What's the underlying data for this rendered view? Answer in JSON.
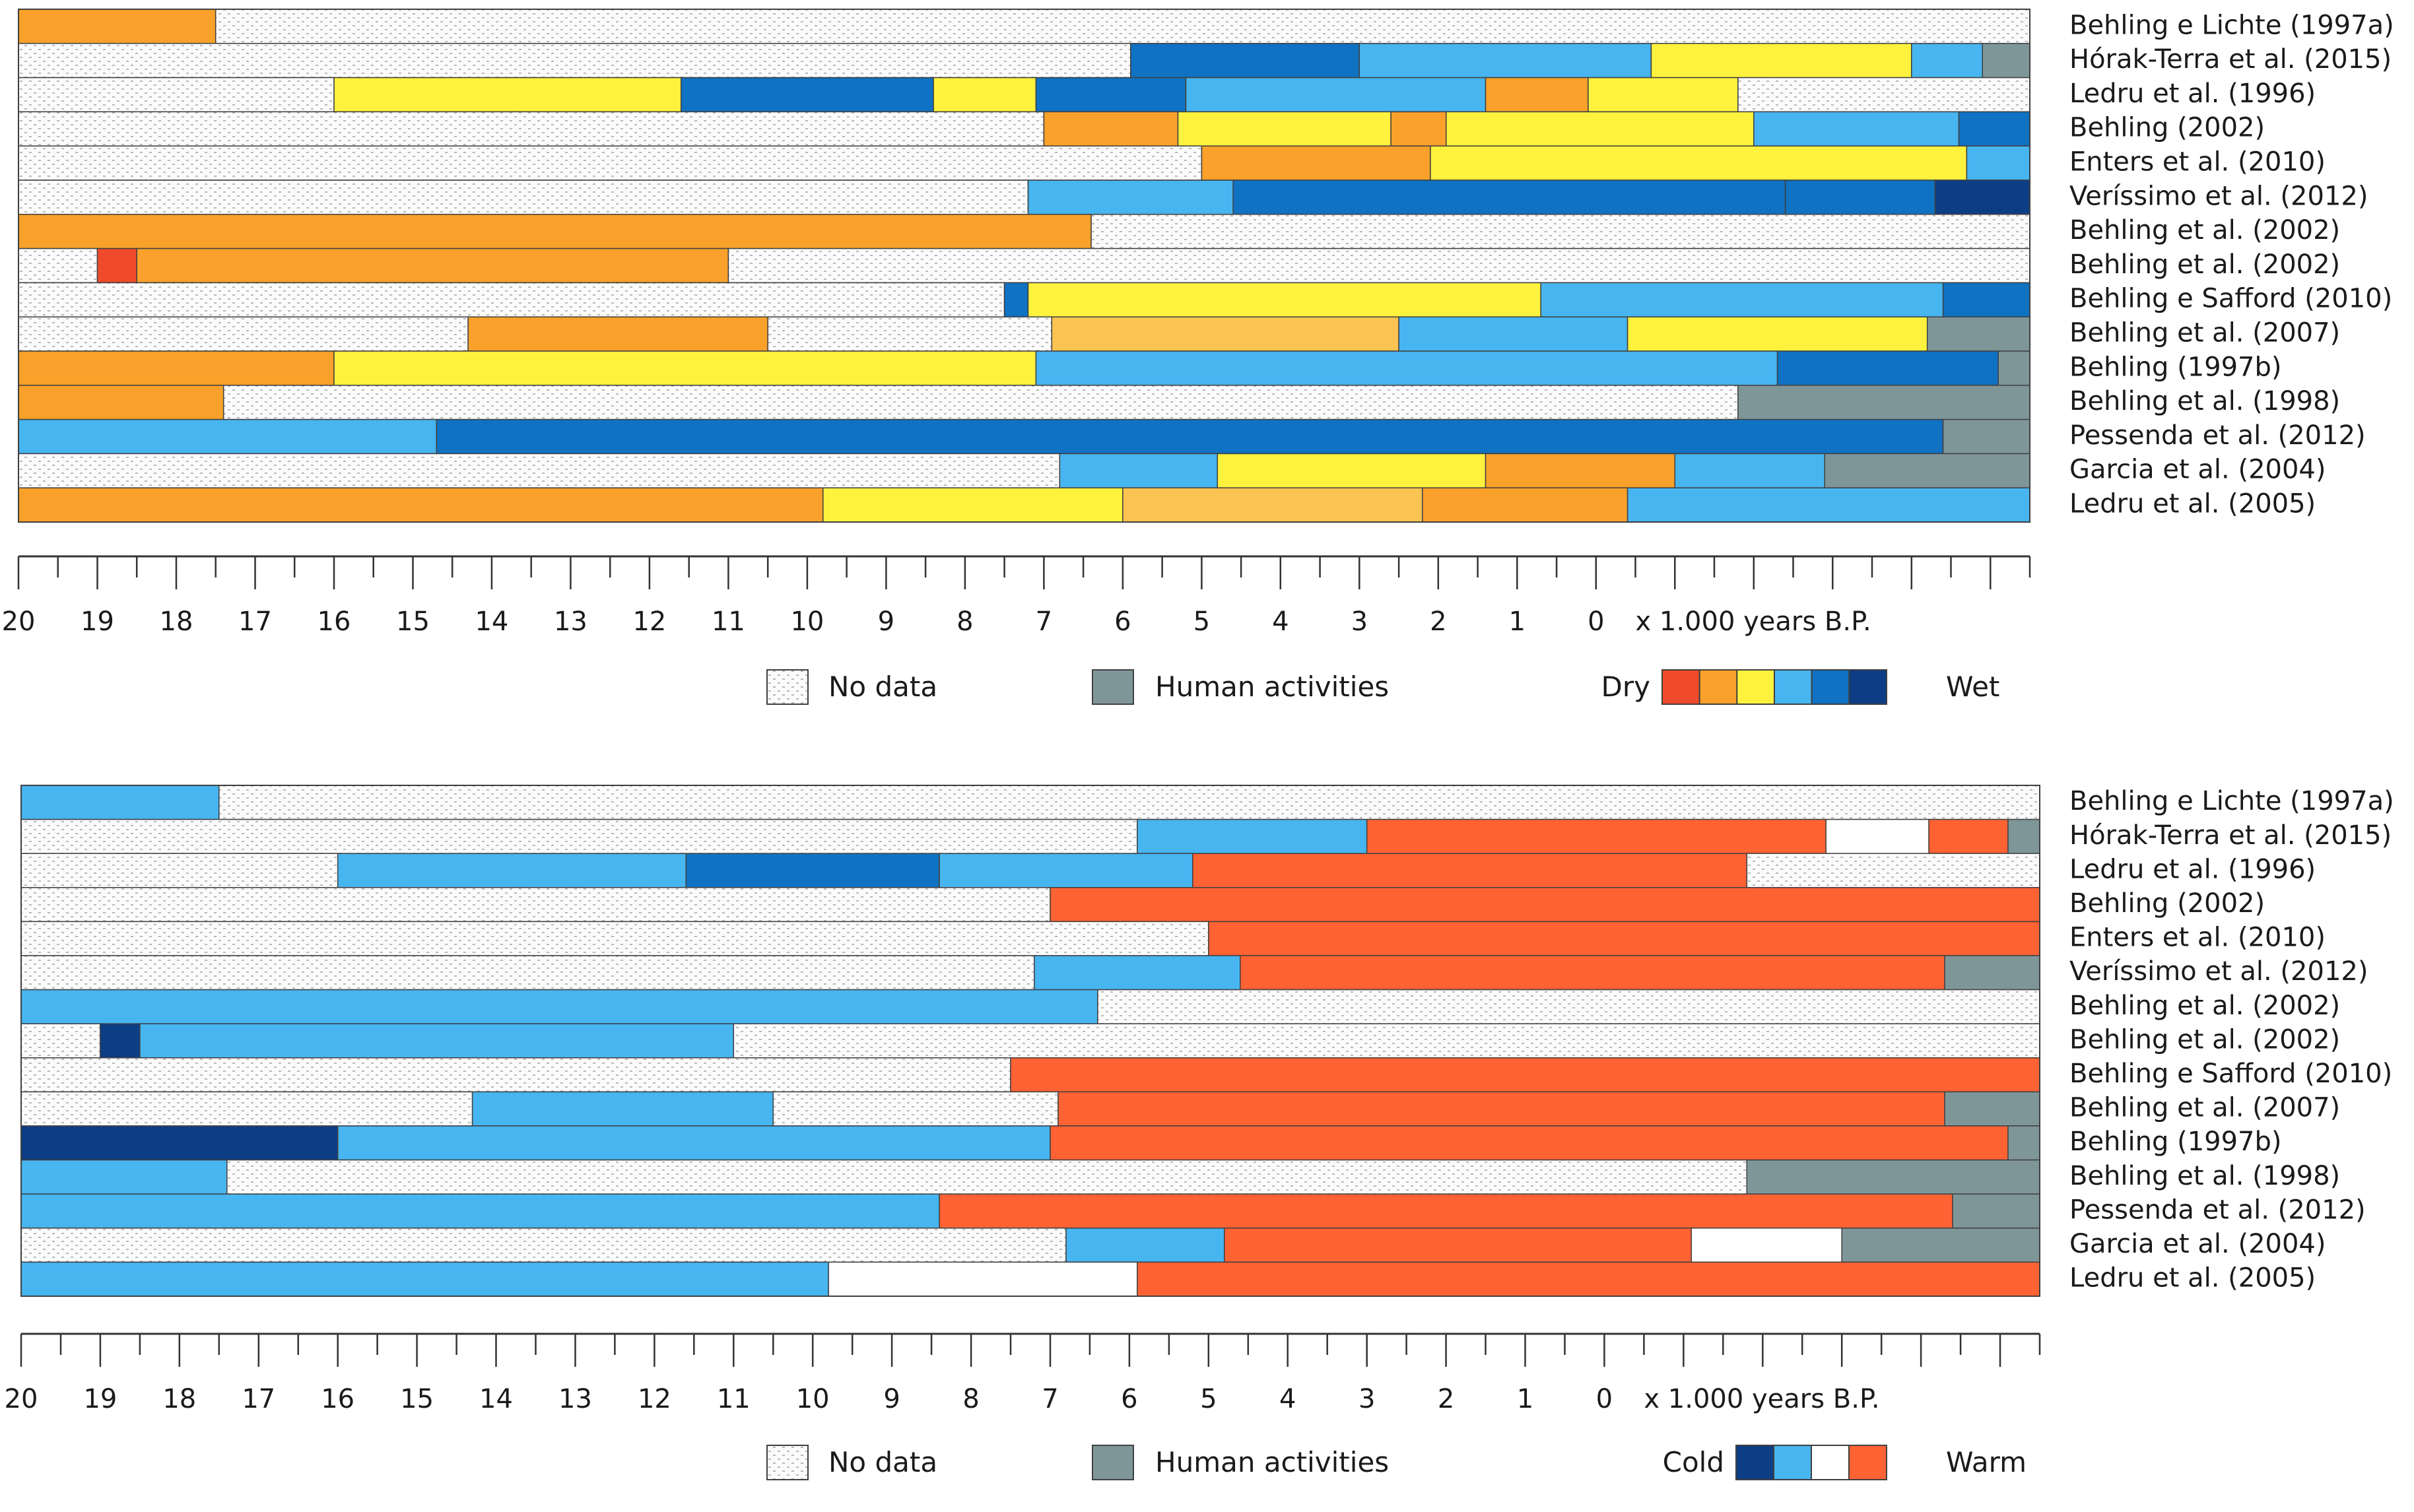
{
  "palette": {
    "no_data_bg": "#fbfbfb",
    "no_data_dot": "#b8b8b8",
    "human": "#7f9699",
    "red": "#f04a2c",
    "orange": "#f9a12a",
    "light_orange": "#fbc351",
    "yellow": "#fff23e",
    "light_blue": "#47b5f0",
    "blue": "#0f72c2",
    "dark_blue": "#0d3d84",
    "white": "#ffffff",
    "warm": "#ff6233",
    "outline": "#404040"
  },
  "chart_data": [
    {
      "type": "bar",
      "subtype": "timeline",
      "x_range": [
        20,
        -5.5
      ],
      "x_ticks": [
        "20",
        "19",
        "18",
        "17",
        "16",
        "15",
        "14",
        "13",
        "12",
        "11",
        "10",
        "9",
        "8",
        "7",
        "6",
        "5",
        "4",
        "3",
        "2",
        "1",
        "0"
      ],
      "x_unit": "x 1.000 years B.P.",
      "legend": {
        "no_data": "No data",
        "human": "Human activities",
        "scale_left": "Dry",
        "scale_right": "Wet",
        "scale_colors": [
          "red",
          "orange",
          "yellow",
          "light_blue",
          "blue",
          "dark_blue"
        ]
      },
      "rows": [
        {
          "label": "Behling e Lichte (1997a)",
          "segments": [
            [
              20,
              17.5,
              "orange"
            ],
            [
              17.5,
              -5.5,
              "nodata"
            ]
          ]
        },
        {
          "label": "Hórak-Terra et al. (2015)",
          "segments": [
            [
              20,
              5.9,
              "nodata"
            ],
            [
              5.9,
              3,
              "blue"
            ],
            [
              3,
              -0.7,
              "light_blue"
            ],
            [
              -0.7,
              -4,
              "yellow"
            ],
            [
              -4,
              -4.9,
              "light_blue"
            ],
            [
              -4.9,
              -5.5,
              "human"
            ]
          ]
        },
        {
          "label": "Ledru et al. (1996)",
          "segments": [
            [
              20,
              16,
              "nodata"
            ],
            [
              16,
              11.6,
              "yellow"
            ],
            [
              11.6,
              8.4,
              "blue"
            ],
            [
              8.4,
              7.1,
              "yellow"
            ],
            [
              7.1,
              5.2,
              "blue"
            ],
            [
              5.2,
              1.4,
              "light_blue"
            ],
            [
              1.4,
              0.1,
              "orange"
            ],
            [
              0.1,
              -1.8,
              "yellow"
            ],
            [
              -1.8,
              -5.5,
              "nodata"
            ]
          ]
        },
        {
          "label": "Behling (2002)",
          "segments": [
            [
              20,
              7
            ],
            [
              7,
              5.3,
              "orange"
            ],
            [
              5.3,
              2.6,
              "yellow"
            ],
            [
              2.6,
              1.9,
              "orange"
            ],
            [
              1.9,
              -2,
              "yellow"
            ],
            [
              -2,
              -4.6,
              "light_blue"
            ],
            [
              -4.6,
              -5.5,
              "blue"
            ]
          ]
        },
        {
          "label": "Enters et al. (2010)",
          "segments": [
            [
              20,
              5
            ],
            [
              5,
              2.1,
              "orange"
            ],
            [
              2.1,
              -4.7,
              "yellow"
            ],
            [
              -4.7,
              -5.5,
              "light_blue"
            ]
          ]
        },
        {
          "label": "Veríssimo et al. (2012)",
          "segments": [
            [
              20,
              7.2
            ],
            [
              7.2,
              4.6,
              "light_blue"
            ],
            [
              4.6,
              -2.4,
              "blue"
            ],
            [
              -2.4,
              -4.3,
              "blue"
            ],
            [
              -4.3,
              -5.5,
              "dark_blue"
            ]
          ]
        },
        {
          "label": "Behling et al. (2002)",
          "segments": [
            [
              20,
              6.4,
              "orange"
            ],
            [
              6.4,
              -5.5,
              "nodata"
            ]
          ]
        },
        {
          "label": "Behling et al. (2002)",
          "segments": [
            [
              20,
              19
            ],
            [
              19,
              18.5,
              "red"
            ],
            [
              18.5,
              11,
              "orange"
            ],
            [
              11,
              -5.5,
              "nodata"
            ]
          ]
        },
        {
          "label": "Behling e Safford (2010)",
          "segments": [
            [
              20,
              7.5,
              "nodata"
            ],
            [
              7.5,
              7.2,
              "blue"
            ],
            [
              7.2,
              0.7,
              "yellow"
            ],
            [
              0.7,
              -4.4,
              "light_blue"
            ],
            [
              -4.4,
              -5.5,
              "blue"
            ]
          ]
        },
        {
          "label": "Behling et al. (2007)",
          "segments": [
            [
              20,
              14.3,
              "nodata"
            ],
            [
              14.3,
              10.5,
              "orange"
            ],
            [
              10.5,
              6.9,
              "nodata"
            ],
            [
              6.9,
              2.5,
              "light_orange"
            ],
            [
              2.5,
              -0.4,
              "light_blue"
            ],
            [
              -0.4,
              -4.2,
              "yellow"
            ],
            [
              -4.2,
              -5.5,
              "human"
            ]
          ]
        },
        {
          "label": "Behling (1997b)",
          "segments": [
            [
              20,
              16,
              "orange"
            ],
            [
              16,
              7.1,
              "yellow"
            ],
            [
              7.1,
              -2.3,
              "light_blue"
            ],
            [
              -2.3,
              -5.1,
              "blue"
            ],
            [
              -5.1,
              -5.5,
              "human"
            ]
          ]
        },
        {
          "label": "Behling et al. (1998)",
          "segments": [
            [
              20,
              17.4,
              "orange"
            ],
            [
              17.4,
              -1.8,
              "nodata"
            ],
            [
              -1.8,
              -5.5,
              "human"
            ]
          ]
        },
        {
          "label": "Pessenda et al. (2012)",
          "segments": [
            [
              20,
              14.7,
              "light_blue"
            ],
            [
              14.7,
              -4.4,
              "blue"
            ],
            [
              -4.4,
              -5.5,
              "human"
            ]
          ]
        },
        {
          "label": "Garcia et al. (2004)",
          "segments": [
            [
              20,
              6.8,
              "nodata"
            ],
            [
              6.8,
              4.8,
              "light_blue"
            ],
            [
              4.8,
              1.4,
              "yellow"
            ],
            [
              1.4,
              -1,
              "orange"
            ],
            [
              -1,
              -2.9,
              "light_blue"
            ],
            [
              -2.9,
              -5.5,
              "human"
            ]
          ]
        },
        {
          "label": "Ledru et al. (2005)",
          "segments": [
            [
              20,
              9.8,
              "orange"
            ],
            [
              9.8,
              6,
              "yellow"
            ],
            [
              6,
              2.2,
              "light_orange"
            ],
            [
              2.2,
              -0.4,
              "orange"
            ],
            [
              -0.4,
              -5.5,
              "light_blue"
            ]
          ]
        }
      ]
    },
    {
      "type": "bar",
      "subtype": "timeline",
      "x_range": [
        20,
        -5.5
      ],
      "x_ticks": [
        "20",
        "19",
        "18",
        "17",
        "16",
        "15",
        "14",
        "13",
        "12",
        "11",
        "10",
        "9",
        "8",
        "7",
        "6",
        "5",
        "4",
        "3",
        "2",
        "1",
        "0"
      ],
      "x_unit": "x 1.000 years B.P.",
      "legend": {
        "no_data": "No data",
        "human": "Human activities",
        "scale_left": "Cold",
        "scale_right": "Warm",
        "scale_colors": [
          "dark_blue",
          "light_blue",
          "white",
          "warm"
        ]
      },
      "rows": [
        {
          "label": "Behling e Lichte (1997a)",
          "segments": [
            [
              20,
              17.5,
              "light_blue"
            ],
            [
              17.5,
              -5.5,
              "nodata"
            ]
          ]
        },
        {
          "label": "Hórak-Terra et al. (2015)",
          "segments": [
            [
              20,
              5.9,
              "nodata"
            ],
            [
              5.9,
              3,
              "light_blue"
            ],
            [
              3,
              -2.8,
              "warm"
            ],
            [
              -2.8,
              -4.1,
              "white"
            ],
            [
              -4.1,
              -5.1,
              "warm"
            ],
            [
              -5.1,
              -5.5,
              "human"
            ]
          ]
        },
        {
          "label": "Ledru et al. (1996)",
          "segments": [
            [
              20,
              16,
              "nodata"
            ],
            [
              16,
              11.6,
              "light_blue"
            ],
            [
              11.6,
              8.4,
              "blue"
            ],
            [
              8.4,
              5.2,
              "light_blue"
            ],
            [
              5.2,
              -1.8,
              "warm"
            ],
            [
              -1.8,
              -5.5,
              "nodata"
            ]
          ]
        },
        {
          "label": "Behling (2002)",
          "segments": [
            [
              20,
              7
            ],
            [
              7,
              -5.5,
              "warm"
            ]
          ]
        },
        {
          "label": "Enters et al. (2010)",
          "segments": [
            [
              20,
              5
            ],
            [
              5,
              -5.5,
              "warm"
            ]
          ]
        },
        {
          "label": "Veríssimo et al. (2012)",
          "segments": [
            [
              20,
              7.2
            ],
            [
              7.2,
              4.6,
              "light_blue"
            ],
            [
              4.6,
              -4.3,
              "warm"
            ],
            [
              -4.3,
              -5.5,
              "human"
            ]
          ]
        },
        {
          "label": "Behling et al. (2002)",
          "segments": [
            [
              20,
              6.4,
              "light_blue"
            ],
            [
              6.4,
              -5.5,
              "nodata"
            ]
          ]
        },
        {
          "label": "Behling et al. (2002)",
          "segments": [
            [
              20,
              19
            ],
            [
              19,
              18.5,
              "dark_blue"
            ],
            [
              18.5,
              11,
              "light_blue"
            ],
            [
              11,
              -5.5,
              "nodata"
            ]
          ]
        },
        {
          "label": "Behling e Safford (2010)",
          "segments": [
            [
              20,
              7.5
            ],
            [
              7.5,
              -5.5,
              "warm"
            ]
          ]
        },
        {
          "label": "Behling et al. (2007)",
          "segments": [
            [
              20,
              14.3,
              "nodata"
            ],
            [
              14.3,
              10.5,
              "light_blue"
            ],
            [
              10.5,
              6.9,
              "nodata"
            ],
            [
              6.9,
              -4.3,
              "warm"
            ],
            [
              -4.3,
              -5.5,
              "human"
            ]
          ]
        },
        {
          "label": "Behling (1997b)",
          "segments": [
            [
              20,
              16,
              "dark_blue"
            ],
            [
              16,
              7,
              "light_blue"
            ],
            [
              7,
              -5.1,
              "warm"
            ],
            [
              -5.1,
              -5.5,
              "human"
            ]
          ]
        },
        {
          "label": "Behling et al. (1998)",
          "segments": [
            [
              20,
              17.4,
              "light_blue"
            ],
            [
              17.4,
              -1.8,
              "nodata"
            ],
            [
              -1.8,
              -5.5,
              "human"
            ]
          ]
        },
        {
          "label": "Pessenda et al. (2012)",
          "segments": [
            [
              20,
              8.4,
              "light_blue"
            ],
            [
              8.4,
              -4.4,
              "warm"
            ],
            [
              -4.4,
              -5.5,
              "human"
            ]
          ]
        },
        {
          "label": "Garcia et al. (2004)",
          "segments": [
            [
              20,
              6.8,
              "nodata"
            ],
            [
              6.8,
              4.8,
              "light_blue"
            ],
            [
              4.8,
              -1.1,
              "warm"
            ],
            [
              -1.1,
              -3,
              "white"
            ],
            [
              -3,
              -5.5,
              "human"
            ]
          ]
        },
        {
          "label": "Ledru et al. (2005)",
          "segments": [
            [
              20,
              9.8,
              "light_blue"
            ],
            [
              9.8,
              5.9,
              "white"
            ],
            [
              5.9,
              -5.5,
              "warm"
            ]
          ]
        }
      ]
    }
  ]
}
